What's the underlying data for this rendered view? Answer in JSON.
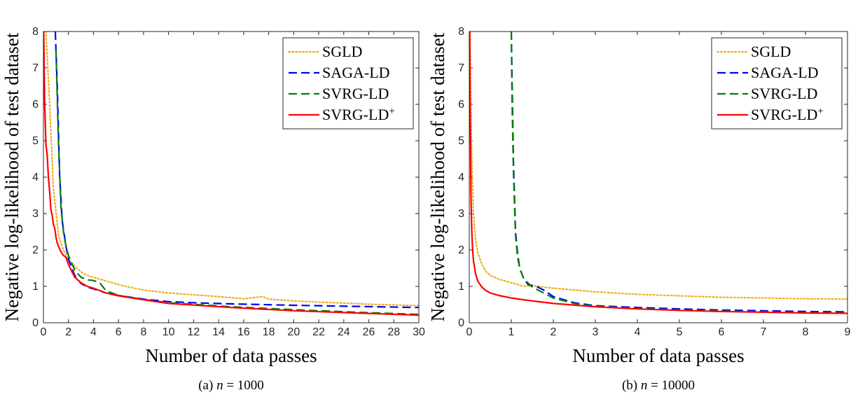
{
  "chart_data": [
    {
      "type": "line",
      "caption": {
        "prefix": "(a) ",
        "var": "n",
        "rest": " = 1000"
      },
      "xlabel": "Number of data passes",
      "ylabel": "Negative log-likelihood of test dataset",
      "xlim": [
        0,
        30
      ],
      "ylim": [
        0,
        8
      ],
      "xticks": [
        0,
        2,
        4,
        6,
        8,
        10,
        12,
        14,
        16,
        18,
        20,
        22,
        24,
        26,
        28,
        30
      ],
      "yticks": [
        0,
        1,
        2,
        3,
        4,
        5,
        6,
        7,
        8
      ],
      "grid": false,
      "legend_position": "top-right",
      "series": [
        {
          "name": "SGLD",
          "color": "#EDB120",
          "style": "dotted",
          "x": [
            0.2,
            0.5,
            0.8,
            1.2,
            1.6,
            2.0,
            2.5,
            3.0,
            3.5,
            4.0,
            5.0,
            6.0,
            7.0,
            8.0,
            9.0,
            10.0,
            12.0,
            14.0,
            16.0,
            17.5,
            18.0,
            20.0,
            22.0,
            24.0,
            26.0,
            28.0,
            30.0
          ],
          "y": [
            8.0,
            6.0,
            3.7,
            2.4,
            2.0,
            1.75,
            1.55,
            1.4,
            1.3,
            1.25,
            1.15,
            1.05,
            0.97,
            0.9,
            0.86,
            0.82,
            0.77,
            0.72,
            0.66,
            0.72,
            0.65,
            0.6,
            0.57,
            0.54,
            0.51,
            0.49,
            0.47
          ]
        },
        {
          "name": "SAGA-LD",
          "color": "#0000FF",
          "style": "dashed",
          "x": [
            0.95,
            1.1,
            1.3,
            1.5,
            1.8,
            2.0,
            2.5,
            3.0,
            3.5,
            4.0,
            5.0,
            6.0,
            8.0,
            10.0,
            12.0,
            15.0,
            20.0,
            25.0,
            30.0
          ],
          "y": [
            8.0,
            6.5,
            4.0,
            2.8,
            2.1,
            1.75,
            1.3,
            1.08,
            0.98,
            0.93,
            0.82,
            0.75,
            0.65,
            0.58,
            0.55,
            0.52,
            0.48,
            0.45,
            0.42
          ]
        },
        {
          "name": "SVRG-LD",
          "color": "#008000",
          "style": "dashed",
          "x": [
            1.0,
            1.2,
            1.4,
            1.6,
            1.8,
            2.0,
            2.5,
            3.0,
            3.5,
            4.0,
            4.5,
            5.0,
            6.0,
            8.0,
            10.0,
            15.0,
            20.0,
            25.0,
            30.0
          ],
          "y": [
            7.5,
            5.0,
            3.2,
            2.5,
            2.1,
            1.85,
            1.45,
            1.25,
            1.18,
            1.16,
            1.1,
            0.88,
            0.75,
            0.64,
            0.55,
            0.44,
            0.36,
            0.29,
            0.23
          ]
        },
        {
          "name": "SVRG-LD",
          "superscript": "+",
          "color": "#FF0000",
          "style": "solid",
          "x": [
            0.02,
            0.1,
            0.2,
            0.3,
            0.4,
            0.5,
            0.6,
            0.7,
            0.8,
            0.9,
            1.0,
            1.1,
            1.2,
            1.4,
            1.6,
            1.8,
            2.0,
            2.5,
            3.0,
            3.5,
            4.0,
            5.0,
            6.0,
            8.0,
            10.0,
            15.0,
            20.0,
            25.0,
            30.0
          ],
          "y": [
            8.0,
            6.0,
            4.9,
            4.6,
            4.0,
            3.6,
            3.1,
            2.95,
            2.7,
            2.6,
            2.35,
            2.2,
            2.1,
            1.95,
            1.85,
            1.8,
            1.6,
            1.25,
            1.1,
            1.0,
            0.95,
            0.82,
            0.74,
            0.63,
            0.53,
            0.42,
            0.33,
            0.27,
            0.21
          ]
        }
      ]
    },
    {
      "type": "line",
      "caption": {
        "prefix": "(b) ",
        "var": "n",
        "rest": " = 10000"
      },
      "xlabel": "Number of data passes",
      "ylabel": "Negative log-likelihood of test dataset",
      "xlim": [
        0,
        9
      ],
      "ylim": [
        0,
        8
      ],
      "xticks": [
        0,
        1,
        2,
        3,
        4,
        5,
        6,
        7,
        8,
        9
      ],
      "yticks": [
        0,
        1,
        2,
        3,
        4,
        5,
        6,
        7,
        8
      ],
      "grid": false,
      "legend_position": "top-right",
      "series": [
        {
          "name": "SGLD",
          "color": "#EDB120",
          "style": "dotted",
          "x": [
            0.02,
            0.05,
            0.1,
            0.15,
            0.2,
            0.3,
            0.4,
            0.5,
            0.7,
            1.0,
            1.3,
            1.5,
            2.0,
            2.5,
            3.0,
            4.0,
            5.0,
            6.0,
            7.0,
            8.0,
            9.0
          ],
          "y": [
            8.0,
            5.0,
            3.0,
            2.3,
            1.95,
            1.6,
            1.4,
            1.3,
            1.2,
            1.1,
            1.0,
            1.02,
            0.95,
            0.9,
            0.85,
            0.78,
            0.74,
            0.7,
            0.68,
            0.66,
            0.65
          ]
        },
        {
          "name": "SAGA-LD",
          "color": "#0000FF",
          "style": "dashed",
          "x": [
            1.0,
            1.02,
            1.05,
            1.1,
            1.15,
            1.2,
            1.3,
            1.4,
            1.6,
            1.8,
            2.0,
            2.5,
            3.0,
            4.0,
            5.0,
            6.0,
            7.0,
            8.0,
            9.0
          ],
          "y": [
            8.0,
            6.5,
            4.5,
            2.5,
            1.9,
            1.5,
            1.2,
            1.05,
            1.0,
            0.88,
            0.72,
            0.55,
            0.47,
            0.42,
            0.38,
            0.35,
            0.33,
            0.31,
            0.3
          ]
        },
        {
          "name": "SVRG-LD",
          "color": "#008000",
          "style": "dashed",
          "x": [
            1.0,
            1.02,
            1.05,
            1.1,
            1.15,
            1.2,
            1.3,
            1.5,
            1.8,
            2.0,
            2.5,
            3.0,
            4.0,
            5.0,
            6.0,
            7.0,
            8.0,
            9.0
          ],
          "y": [
            8.0,
            6.0,
            4.2,
            2.4,
            1.8,
            1.5,
            1.2,
            0.98,
            0.8,
            0.68,
            0.53,
            0.45,
            0.39,
            0.35,
            0.32,
            0.3,
            0.28,
            0.27
          ]
        },
        {
          "name": "SVRG-LD",
          "superscript": "+",
          "color": "#FF0000",
          "style": "solid",
          "x": [
            0.01,
            0.02,
            0.04,
            0.06,
            0.08,
            0.1,
            0.15,
            0.2,
            0.3,
            0.4,
            0.5,
            0.7,
            1.0,
            1.5,
            2.0,
            3.0,
            4.0,
            5.0,
            6.0,
            7.0,
            8.0,
            9.0
          ],
          "y": [
            8.0,
            6.0,
            3.5,
            2.5,
            2.0,
            1.7,
            1.35,
            1.15,
            0.98,
            0.88,
            0.82,
            0.75,
            0.68,
            0.6,
            0.53,
            0.44,
            0.38,
            0.34,
            0.31,
            0.29,
            0.27,
            0.26
          ]
        }
      ]
    }
  ]
}
